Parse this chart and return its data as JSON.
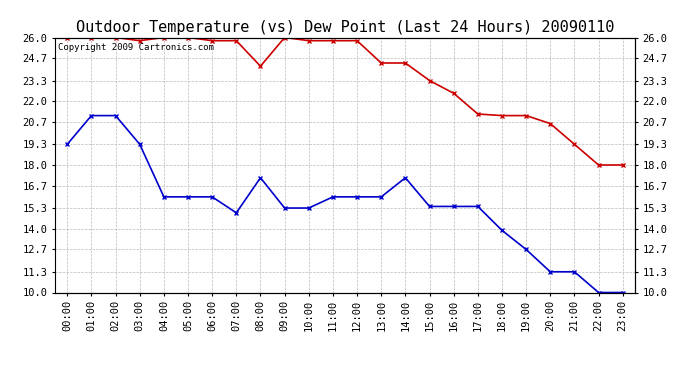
{
  "title": "Outdoor Temperature (vs) Dew Point (Last 24 Hours) 20090110",
  "copyright": "Copyright 2009 Cartronics.com",
  "x_labels": [
    "00:00",
    "01:00",
    "02:00",
    "03:00",
    "04:00",
    "05:00",
    "06:00",
    "07:00",
    "08:00",
    "09:00",
    "10:00",
    "11:00",
    "12:00",
    "13:00",
    "14:00",
    "15:00",
    "16:00",
    "17:00",
    "18:00",
    "19:00",
    "20:00",
    "21:00",
    "22:00",
    "23:00"
  ],
  "temp_data": [
    26.0,
    26.0,
    26.0,
    25.8,
    26.0,
    26.0,
    25.8,
    25.8,
    24.2,
    26.0,
    25.8,
    25.8,
    25.8,
    24.4,
    24.4,
    23.3,
    22.5,
    21.2,
    21.1,
    21.1,
    20.6,
    19.3,
    18.0,
    18.0
  ],
  "dew_data": [
    19.3,
    21.1,
    21.1,
    19.3,
    16.0,
    16.0,
    16.0,
    15.0,
    17.2,
    15.3,
    15.3,
    16.0,
    16.0,
    16.0,
    17.2,
    15.4,
    15.4,
    15.4,
    13.9,
    12.7,
    11.3,
    11.3,
    10.0,
    10.0
  ],
  "temp_color": "#cc0000",
  "dew_color": "#0000cc",
  "bg_color": "#ffffff",
  "grid_color": "#bbbbbb",
  "ylim": [
    10.0,
    26.0
  ],
  "y_ticks": [
    10.0,
    11.3,
    12.7,
    14.0,
    15.3,
    16.7,
    18.0,
    19.3,
    20.7,
    22.0,
    23.3,
    24.7,
    26.0
  ],
  "title_fontsize": 11,
  "tick_fontsize": 7.5,
  "copyright_fontsize": 6.5
}
